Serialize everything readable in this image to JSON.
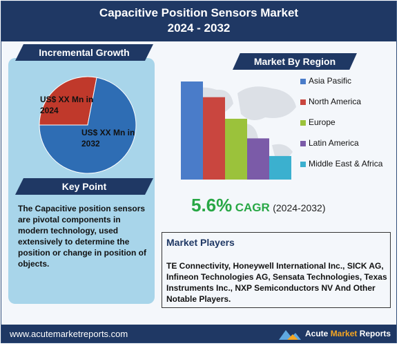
{
  "header": {
    "title_line1": "Capacitive Position Sensors Market",
    "title_line2": "2024 - 2032"
  },
  "growth": {
    "tab_label": "Incremental Growth",
    "label_2024": "US$ XX Mn in 2024",
    "label_2032": "US$ XX Mn in 2032",
    "colors": {
      "y2024": "#c0392b",
      "y2032": "#2e6db4"
    }
  },
  "keypoint": {
    "tab_label": "Key Point",
    "text": "The Capacitive position sensors are pivotal components in modern technology, used extensively to determine the position or change in position of objects."
  },
  "region": {
    "tab_label": "Market By Region"
  },
  "cagr": {
    "value": "5.6%",
    "label": "CAGR",
    "period": "(2024-2032)"
  },
  "players": {
    "title": "Market Players",
    "text": "TE Connectivity, Honeywell International Inc., SICK AG, Infineon Technologies AG, Sensata Technologies, Texas Instruments Inc., NXP Semiconductors NV And Other Notable Players."
  },
  "footer": {
    "url": "www.acutemarketreports.com",
    "logo_part1": "Acute ",
    "logo_part2": "Market",
    "logo_part3": " Reports"
  },
  "chart_data": [
    {
      "type": "pie",
      "title": "",
      "slices": [
        {
          "label": "US$ XX Mn in 2024",
          "value": 28,
          "color": "#c0392b"
        },
        {
          "label": "US$ XX Mn in 2032",
          "value": 72,
          "color": "#2e6db4"
        }
      ]
    },
    {
      "type": "bar",
      "title": "",
      "categories": [
        "Asia Pasific",
        "North America",
        "Europe",
        "Latin America",
        "Middle East & Africa"
      ],
      "values": [
        100,
        84,
        62,
        42,
        24
      ],
      "colors": [
        "#4a7cc9",
        "#c9463f",
        "#9bc23b",
        "#7b5ba8",
        "#3bb0cf"
      ],
      "ylim": [
        0,
        100
      ],
      "legend": "right",
      "grid": false
    }
  ]
}
